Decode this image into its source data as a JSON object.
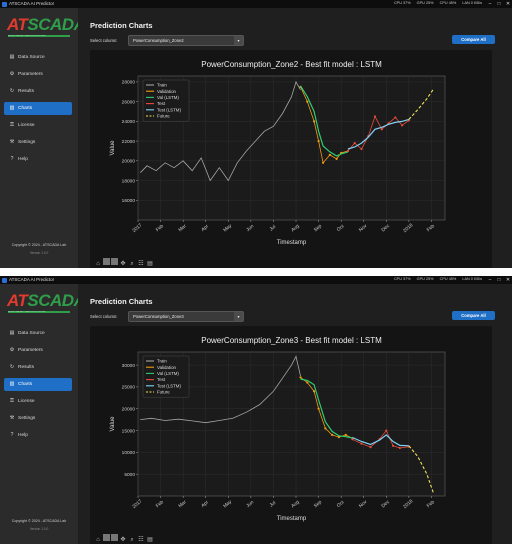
{
  "app": {
    "title": "ATSCADA AI Predictor",
    "stats": [
      "CPU 37%",
      "GPU 25%",
      "CPU 45%",
      "LAN 0 KB/s"
    ],
    "logo_a": "AT",
    "logo_s": "SCADA",
    "tagline": "INDUSTRIAL AUTOMATION SOLUTIONS",
    "nav": [
      {
        "label": "Data Source",
        "icon": "database-icon",
        "glyph": "▤"
      },
      {
        "label": "Parameters",
        "icon": "gear-icon",
        "glyph": "⚙"
      },
      {
        "label": "Results",
        "icon": "refresh-icon",
        "glyph": "↻"
      },
      {
        "label": "Charts",
        "icon": "chart-icon",
        "glyph": "▥"
      },
      {
        "label": "License",
        "icon": "key-icon",
        "glyph": "⚿"
      },
      {
        "label": "Settings",
        "icon": "wrench-icon",
        "glyph": "⚒"
      },
      {
        "label": "Help",
        "icon": "help-icon",
        "glyph": "?"
      }
    ],
    "copyright": "Copyright © 2024 - ATSCADA Lab",
    "version": "Version 1.0.0",
    "page_title": "Prediction Charts",
    "select_label": "Select column:",
    "compare_label": "Compare All",
    "colors": {
      "train": "#a6a6a6",
      "validation": "#f39c12",
      "val_lstm": "#2ecc71",
      "test": "#e74c3c",
      "test_lstm": "#7fd3f7",
      "future": "#f1e05a",
      "accent": "#1f6fc7"
    }
  },
  "panels": [
    {
      "selected_column": "PowerConsumption_Zone2"
    },
    {
      "selected_column": "PowerConsumption_Zone3"
    }
  ],
  "chart_data": [
    {
      "type": "line",
      "title": "PowerConsumption_Zone2 - Best fit model : LSTM",
      "xlabel": "Timestamp",
      "ylabel": "Value",
      "xlim": [
        0,
        13.6
      ],
      "ylim": [
        14000,
        28600
      ],
      "xticks": [
        {
          "v": 0,
          "l": "2017"
        },
        {
          "v": 1,
          "l": "Feb"
        },
        {
          "v": 2,
          "l": "Mar"
        },
        {
          "v": 3,
          "l": "Apr"
        },
        {
          "v": 4,
          "l": "May"
        },
        {
          "v": 5,
          "l": "Jun"
        },
        {
          "v": 6,
          "l": "Jul"
        },
        {
          "v": 7,
          "l": "Aug"
        },
        {
          "v": 8,
          "l": "Sep"
        },
        {
          "v": 9,
          "l": "Oct"
        },
        {
          "v": 10,
          "l": "Nov"
        },
        {
          "v": 11,
          "l": "Dec"
        },
        {
          "v": 12,
          "l": "2018"
        },
        {
          "v": 13,
          "l": "Feb"
        }
      ],
      "yticks": [
        16000,
        18000,
        20000,
        22000,
        24000,
        26000,
        28000
      ],
      "legend": [
        "Train",
        "Validation",
        "Val (LSTM)",
        "Test",
        "Test (LSTM)",
        "Future"
      ],
      "series": [
        {
          "name": "Train",
          "x": [
            0.1,
            0.4,
            0.8,
            1.2,
            1.6,
            2.0,
            2.4,
            2.8,
            3.2,
            3.6,
            4.0,
            4.4,
            4.8,
            5.2,
            5.6,
            6.0,
            6.4,
            6.8,
            7.0,
            7.2
          ],
          "y": [
            18800,
            19500,
            19000,
            19800,
            19300,
            20000,
            19000,
            20300,
            18000,
            19300,
            18000,
            19800,
            21000,
            22000,
            23000,
            23500,
            24800,
            26500,
            28000,
            27200
          ]
        },
        {
          "name": "Validation",
          "x": [
            7.2,
            7.5,
            7.8,
            8.0,
            8.2,
            8.5,
            8.8,
            9.0,
            9.3
          ],
          "y": [
            27500,
            26000,
            24000,
            22000,
            19800,
            20600,
            20200,
            20800,
            21000
          ]
        },
        {
          "name": "Val (LSTM)",
          "x": [
            7.2,
            7.5,
            7.8,
            8.0,
            8.2,
            8.5,
            8.8,
            9.0,
            9.3
          ],
          "y": [
            27600,
            26500,
            25000,
            23000,
            21500,
            20900,
            20500,
            20700,
            20900
          ]
        },
        {
          "name": "Test",
          "x": [
            9.3,
            9.6,
            9.9,
            10.2,
            10.5,
            10.8,
            11.1,
            11.4,
            11.7,
            12.0
          ],
          "y": [
            21000,
            21800,
            21200,
            22500,
            24500,
            23200,
            23800,
            24400,
            23600,
            24100
          ]
        },
        {
          "name": "Test (LSTM)",
          "x": [
            9.3,
            9.6,
            9.9,
            10.2,
            10.5,
            10.8,
            11.1,
            11.4,
            11.7,
            12.0
          ],
          "y": [
            21200,
            21400,
            21800,
            22400,
            23200,
            23400,
            23700,
            23900,
            24000,
            24200
          ]
        },
        {
          "name": "Future",
          "x": [
            12.0,
            12.4,
            12.8,
            13.1
          ],
          "y": [
            24200,
            25200,
            26300,
            27300
          ]
        }
      ]
    },
    {
      "type": "line",
      "title": "PowerConsumption_Zone3 - Best fit model : LSTM",
      "xlabel": "Timestamp",
      "ylabel": "Value",
      "xlim": [
        0,
        13.6
      ],
      "ylim": [
        0,
        33000
      ],
      "xticks": [
        {
          "v": 0,
          "l": "2017"
        },
        {
          "v": 1,
          "l": "Feb"
        },
        {
          "v": 2,
          "l": "Mar"
        },
        {
          "v": 3,
          "l": "Apr"
        },
        {
          "v": 4,
          "l": "May"
        },
        {
          "v": 5,
          "l": "Jun"
        },
        {
          "v": 6,
          "l": "Jul"
        },
        {
          "v": 7,
          "l": "Aug"
        },
        {
          "v": 8,
          "l": "Sep"
        },
        {
          "v": 9,
          "l": "Oct"
        },
        {
          "v": 10,
          "l": "Nov"
        },
        {
          "v": 11,
          "l": "Dec"
        },
        {
          "v": 12,
          "l": "2018"
        },
        {
          "v": 13,
          "l": "Feb"
        }
      ],
      "yticks": [
        5000,
        10000,
        15000,
        20000,
        25000,
        30000
      ],
      "legend": [
        "Train",
        "Validation",
        "Val (LSTM)",
        "Test",
        "Test (LSTM)",
        "Future"
      ],
      "series": [
        {
          "name": "Train",
          "x": [
            0.1,
            0.6,
            1.2,
            1.8,
            2.4,
            3.0,
            3.6,
            4.2,
            4.8,
            5.4,
            6.0,
            6.4,
            6.8,
            7.0,
            7.2
          ],
          "y": [
            17500,
            17800,
            17300,
            17600,
            17200,
            16800,
            17300,
            17800,
            19200,
            21000,
            24000,
            27000,
            30000,
            32000,
            27500
          ]
        },
        {
          "name": "Validation",
          "x": [
            7.2,
            7.5,
            7.8,
            8.0,
            8.3,
            8.6,
            8.9,
            9.2,
            9.5
          ],
          "y": [
            27200,
            26000,
            24000,
            20000,
            15500,
            14000,
            13500,
            14000,
            13200
          ]
        },
        {
          "name": "Val (LSTM)",
          "x": [
            7.2,
            7.5,
            7.8,
            8.0,
            8.3,
            8.6,
            8.9,
            9.2,
            9.5
          ],
          "y": [
            26800,
            26500,
            25500,
            22000,
            17000,
            14800,
            13800,
            13600,
            13300
          ]
        },
        {
          "name": "Test",
          "x": [
            9.5,
            9.9,
            10.3,
            10.7,
            11.0,
            11.3,
            11.6,
            12.0
          ],
          "y": [
            13000,
            12000,
            11200,
            13000,
            15000,
            11500,
            11000,
            11300
          ]
        },
        {
          "name": "Test (LSTM)",
          "x": [
            9.5,
            9.9,
            10.3,
            10.7,
            11.0,
            11.3,
            11.6,
            12.0
          ],
          "y": [
            13400,
            12500,
            11800,
            12800,
            14000,
            12500,
            11600,
            11500
          ]
        },
        {
          "name": "Future",
          "x": [
            12.0,
            12.4,
            12.8,
            13.1
          ],
          "y": [
            11500,
            9000,
            5000,
            500
          ]
        }
      ]
    }
  ]
}
